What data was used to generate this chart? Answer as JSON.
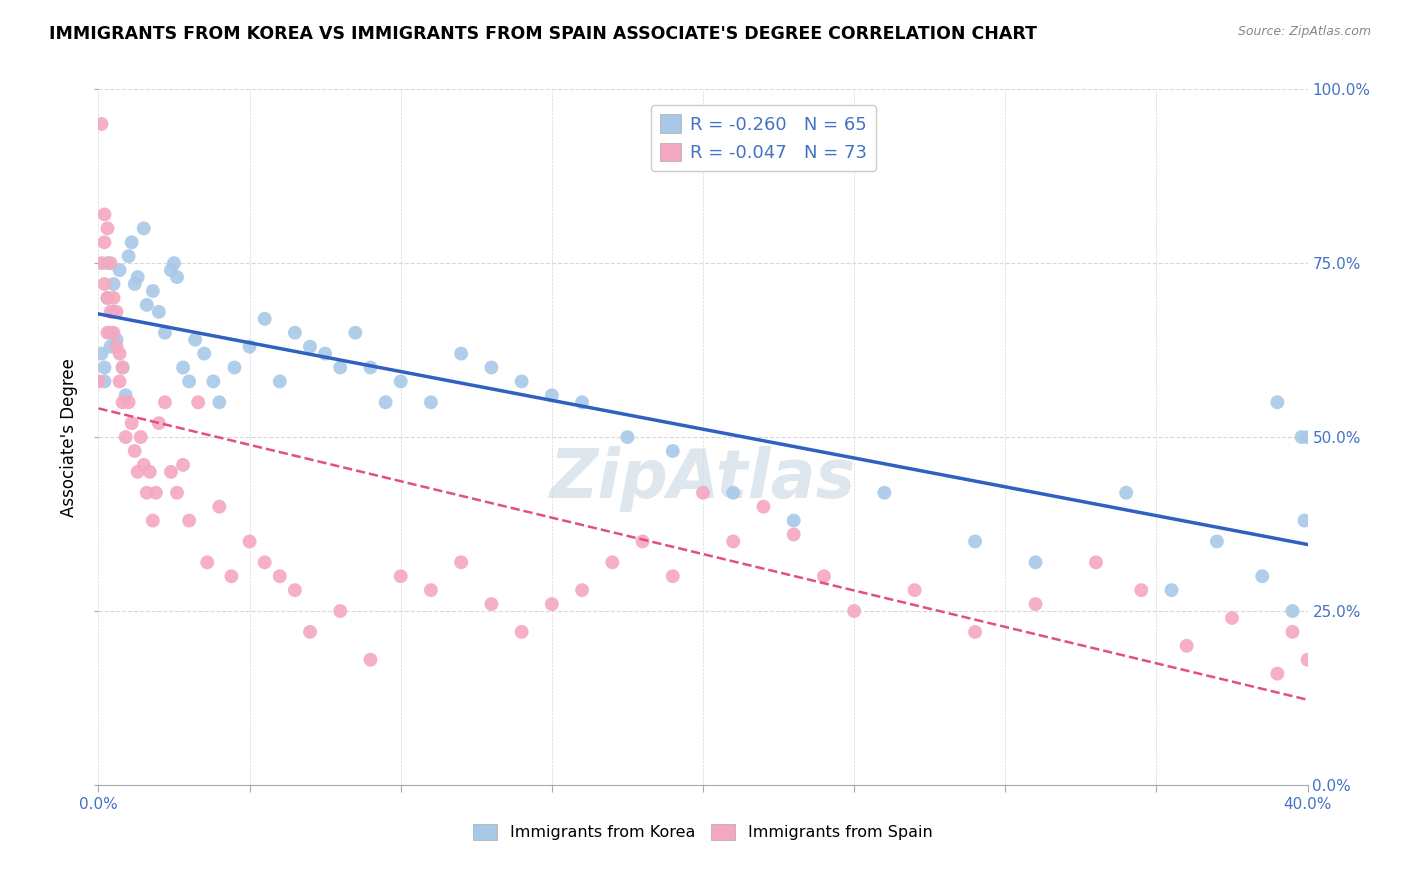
{
  "title": "IMMIGRANTS FROM KOREA VS IMMIGRANTS FROM SPAIN ASSOCIATE'S DEGREE CORRELATION CHART",
  "source": "Source: ZipAtlas.com",
  "ylabel": "Associate's Degree",
  "xlim": [
    0.0,
    0.4
  ],
  "ylim": [
    0.0,
    1.0
  ],
  "korea_R": -0.26,
  "korea_N": 65,
  "spain_R": -0.047,
  "spain_N": 73,
  "korea_color": "#a8c8e8",
  "spain_color": "#f4a8c0",
  "korea_line_color": "#3060c0",
  "spain_line_color": "#e05080",
  "korea_line_style": "solid",
  "spain_line_style": "dashed",
  "korea_scatter_x": [
    0.001,
    0.002,
    0.002,
    0.003,
    0.003,
    0.004,
    0.004,
    0.005,
    0.005,
    0.006,
    0.007,
    0.008,
    0.009,
    0.01,
    0.011,
    0.012,
    0.013,
    0.015,
    0.016,
    0.018,
    0.02,
    0.022,
    0.024,
    0.025,
    0.026,
    0.028,
    0.03,
    0.032,
    0.035,
    0.038,
    0.04,
    0.045,
    0.05,
    0.055,
    0.06,
    0.065,
    0.07,
    0.075,
    0.08,
    0.085,
    0.09,
    0.095,
    0.1,
    0.11,
    0.12,
    0.13,
    0.14,
    0.15,
    0.16,
    0.175,
    0.19,
    0.21,
    0.23,
    0.26,
    0.29,
    0.31,
    0.34,
    0.355,
    0.37,
    0.385,
    0.39,
    0.395,
    0.398,
    0.399,
    0.4
  ],
  "korea_scatter_y": [
    0.62,
    0.6,
    0.58,
    0.75,
    0.7,
    0.65,
    0.63,
    0.68,
    0.72,
    0.64,
    0.74,
    0.6,
    0.56,
    0.76,
    0.78,
    0.72,
    0.73,
    0.8,
    0.69,
    0.71,
    0.68,
    0.65,
    0.74,
    0.75,
    0.73,
    0.6,
    0.58,
    0.64,
    0.62,
    0.58,
    0.55,
    0.6,
    0.63,
    0.67,
    0.58,
    0.65,
    0.63,
    0.62,
    0.6,
    0.65,
    0.6,
    0.55,
    0.58,
    0.55,
    0.62,
    0.6,
    0.58,
    0.56,
    0.55,
    0.5,
    0.48,
    0.42,
    0.38,
    0.42,
    0.35,
    0.32,
    0.42,
    0.28,
    0.35,
    0.3,
    0.55,
    0.25,
    0.5,
    0.38,
    0.5
  ],
  "spain_scatter_x": [
    0.0,
    0.001,
    0.001,
    0.002,
    0.002,
    0.002,
    0.003,
    0.003,
    0.003,
    0.004,
    0.004,
    0.005,
    0.005,
    0.006,
    0.006,
    0.007,
    0.007,
    0.008,
    0.008,
    0.009,
    0.01,
    0.011,
    0.012,
    0.013,
    0.014,
    0.015,
    0.016,
    0.017,
    0.018,
    0.019,
    0.02,
    0.022,
    0.024,
    0.026,
    0.028,
    0.03,
    0.033,
    0.036,
    0.04,
    0.044,
    0.05,
    0.055,
    0.06,
    0.065,
    0.07,
    0.08,
    0.09,
    0.1,
    0.11,
    0.12,
    0.13,
    0.14,
    0.15,
    0.16,
    0.17,
    0.18,
    0.19,
    0.2,
    0.21,
    0.22,
    0.23,
    0.24,
    0.25,
    0.27,
    0.29,
    0.31,
    0.33,
    0.345,
    0.36,
    0.375,
    0.39,
    0.395,
    0.4
  ],
  "spain_scatter_y": [
    0.58,
    0.95,
    0.75,
    0.78,
    0.82,
    0.72,
    0.8,
    0.7,
    0.65,
    0.75,
    0.68,
    0.7,
    0.65,
    0.63,
    0.68,
    0.62,
    0.58,
    0.55,
    0.6,
    0.5,
    0.55,
    0.52,
    0.48,
    0.45,
    0.5,
    0.46,
    0.42,
    0.45,
    0.38,
    0.42,
    0.52,
    0.55,
    0.45,
    0.42,
    0.46,
    0.38,
    0.55,
    0.32,
    0.4,
    0.3,
    0.35,
    0.32,
    0.3,
    0.28,
    0.22,
    0.25,
    0.18,
    0.3,
    0.28,
    0.32,
    0.26,
    0.22,
    0.26,
    0.28,
    0.32,
    0.35,
    0.3,
    0.42,
    0.35,
    0.4,
    0.36,
    0.3,
    0.25,
    0.28,
    0.22,
    0.26,
    0.32,
    0.28,
    0.2,
    0.24,
    0.16,
    0.22,
    0.18
  ],
  "korea_dot_size": 100,
  "spain_dot_size": 100,
  "background_color": "#ffffff",
  "grid_color": "#d8d8d8",
  "tick_label_color": "#4472c4",
  "title_fontsize": 12.5,
  "axis_label_fontsize": 12,
  "x_tick_positions": [
    0.0,
    0.05,
    0.1,
    0.15,
    0.2,
    0.25,
    0.3,
    0.35,
    0.4
  ],
  "x_tick_labels_show": [
    "0.0%",
    "",
    "",
    "",
    "",
    "",
    "",
    "",
    "40.0%"
  ],
  "y_tick_positions": [
    0.0,
    0.25,
    0.5,
    0.75,
    1.0
  ],
  "y_tick_labels": [
    "0.0%",
    "25.0%",
    "50.0%",
    "75.0%",
    "100.0%"
  ],
  "watermark": "ZipAtlas",
  "watermark_color": "#d0dce8",
  "legend_top_label1": "R = -0.260   N = 65",
  "legend_top_label2": "R = -0.047   N = 73",
  "legend_bottom_label1": "Immigrants from Korea",
  "legend_bottom_label2": "Immigrants from Spain"
}
